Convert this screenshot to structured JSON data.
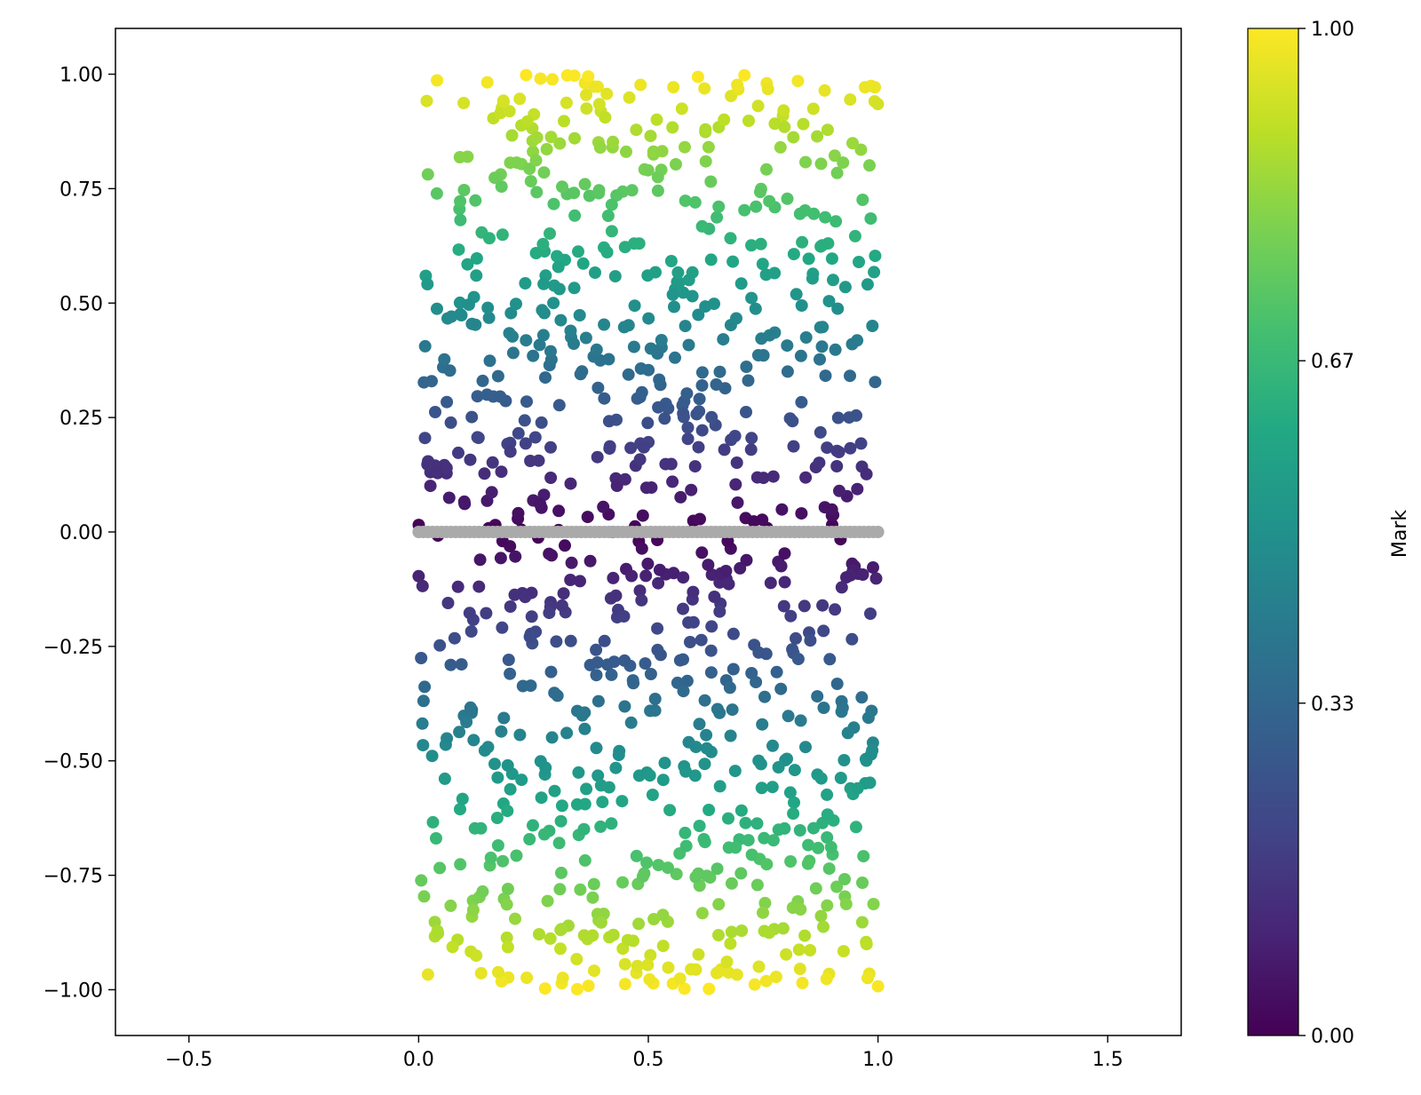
{
  "chart_data": {
    "type": "scatter",
    "title": "",
    "xlabel": "",
    "ylabel": "",
    "xlim": [
      -0.66,
      1.66
    ],
    "ylim": [
      -1.1,
      1.1
    ],
    "x_ticks": [
      -0.5,
      0.0,
      0.5,
      1.0,
      1.5
    ],
    "x_tick_labels": [
      "−0.5",
      "0.0",
      "0.5",
      "1.0",
      "1.5"
    ],
    "y_ticks": [
      1.0,
      0.75,
      0.5,
      0.25,
      0.0,
      -0.25,
      -0.5,
      -0.75,
      -1.0
    ],
    "y_tick_labels": [
      "1.00",
      "0.75",
      "0.50",
      "0.25",
      "0.00",
      "−0.25",
      "−0.50",
      "−0.75",
      "−1.00"
    ],
    "grid": false,
    "legend": "none",
    "colorbar": {
      "label": "Mark",
      "colormap": "viridis",
      "range": [
        0.0,
        1.0
      ],
      "ticks": [
        0.0,
        0.33,
        0.67,
        1.0
      ],
      "tick_labels": [
        "0.00",
        "0.33",
        "0.67",
        "1.00"
      ]
    },
    "series": [
      {
        "kind": "colored-points",
        "description_of_color": "mark equals absolute value of y",
        "x_range": [
          0.0,
          1.0
        ],
        "y_range": [
          -1.0,
          1.0
        ],
        "count": 1000
      },
      {
        "kind": "line-points",
        "color": "#aaaaaa",
        "y": 0.0,
        "x_range": [
          0.0,
          1.0
        ],
        "count": 100
      }
    ]
  }
}
